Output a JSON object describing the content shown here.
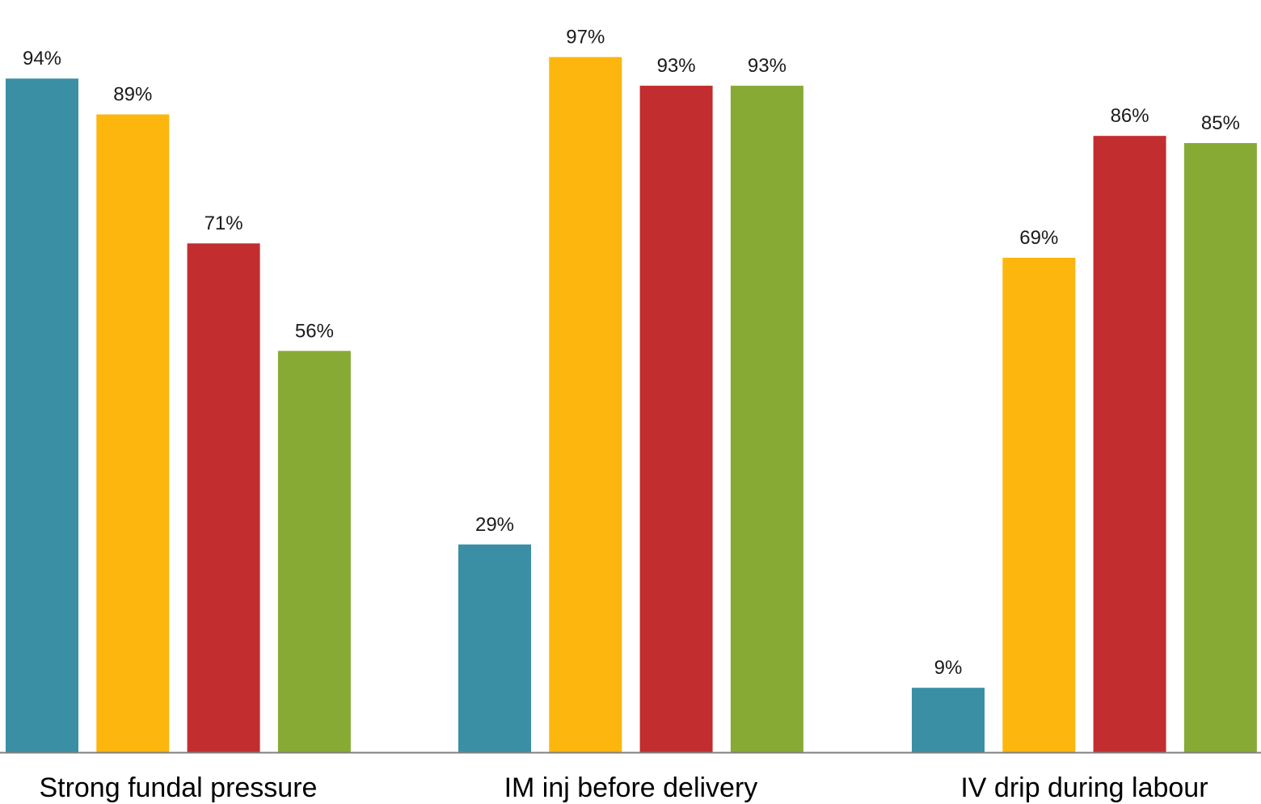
{
  "chart_data": {
    "type": "bar",
    "categories": [
      "Strong fundal pressure",
      "IM inj before delivery",
      "IV drip during labour"
    ],
    "series": [
      {
        "values": [
          94,
          29,
          9
        ],
        "labels": [
          "94%",
          "29%",
          "9%"
        ],
        "color": "#3A8FA5"
      },
      {
        "values": [
          89,
          97,
          69
        ],
        "labels": [
          "89%",
          "97%",
          "69%"
        ],
        "color": "#FDB60D"
      },
      {
        "values": [
          71,
          93,
          86
        ],
        "labels": [
          "71%",
          "93%",
          "86%"
        ],
        "color": "#C22D2F"
      },
      {
        "values": [
          56,
          93,
          85
        ],
        "labels": [
          "56%",
          "93%",
          "85%"
        ],
        "color": "#87AA35"
      }
    ],
    "ylim": [
      0,
      100
    ],
    "grid": false,
    "axis_color": "#7f7f7f"
  }
}
